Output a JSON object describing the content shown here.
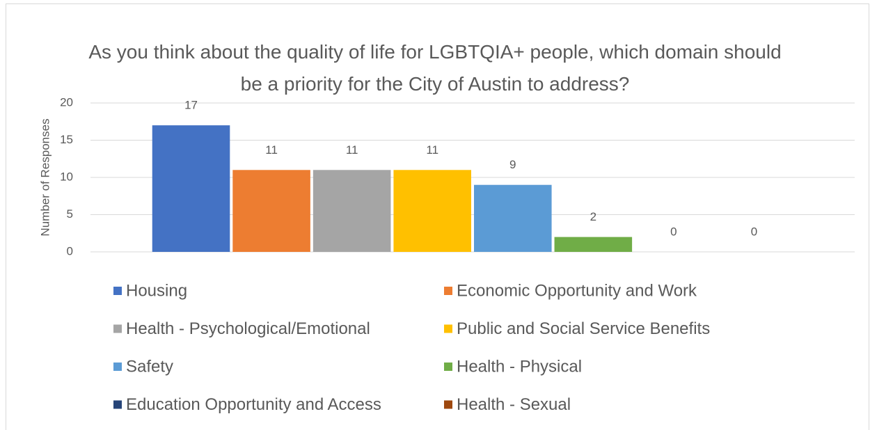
{
  "chart_data": {
    "type": "bar",
    "title": "As you think about the quality of life for LGBTQIA+ people, which domain should be a priority for the City of Austin to address?",
    "y_label": "Number of Responses",
    "categories": [
      null
    ],
    "series": [
      {
        "name": "Housing",
        "color": "#4472c4",
        "values": [
          17
        ]
      },
      {
        "name": "Economic Opportunity and Work",
        "color": "#ed7d31",
        "values": [
          11
        ]
      },
      {
        "name": "Health - Psychological/Emotional",
        "color": "#a5a5a5",
        "values": [
          11
        ]
      },
      {
        "name": "Public and Social Service Benefits",
        "color": "#ffc000",
        "values": [
          11
        ]
      },
      {
        "name": "Safety",
        "color": "#5b9bd5",
        "values": [
          9
        ]
      },
      {
        "name": "Health - Physical",
        "color": "#70ad47",
        "values": [
          2
        ]
      },
      {
        "name": "Education Opportunity and Access",
        "color": "#264478",
        "values": [
          0
        ]
      },
      {
        "name": "Health - Sexual",
        "color": "#9e480e",
        "values": [
          0
        ]
      }
    ],
    "ylim": [
      0,
      20
    ],
    "yticks": [
      0,
      5,
      10,
      15,
      20
    ],
    "grid": true,
    "data_labels": true,
    "legend": "bottom"
  }
}
